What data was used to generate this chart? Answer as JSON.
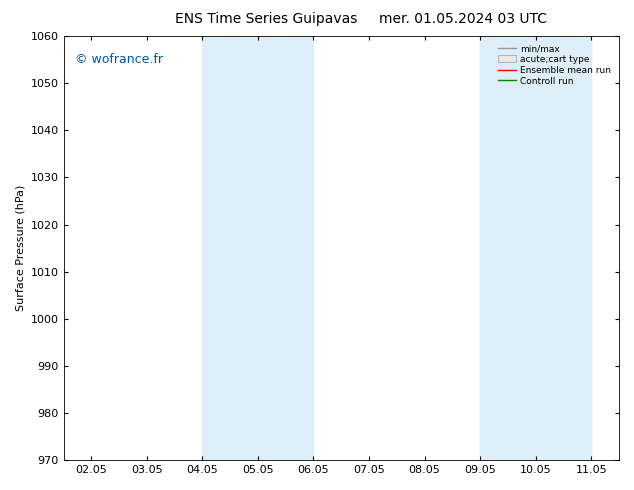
{
  "title_left": "ENS Time Series Guipavas",
  "title_right": "mer. 01.05.2024 03 UTC",
  "ylabel": "Surface Pressure (hPa)",
  "ylim": [
    970,
    1060
  ],
  "yticks": [
    970,
    980,
    990,
    1000,
    1010,
    1020,
    1030,
    1040,
    1050,
    1060
  ],
  "xtick_labels": [
    "02.05",
    "03.05",
    "04.05",
    "05.05",
    "06.05",
    "07.05",
    "08.05",
    "09.05",
    "10.05",
    "11.05"
  ],
  "watermark": "© wofrance.fr",
  "watermark_color": "#0055aa",
  "shaded_bands": [
    {
      "xmin": 2,
      "xmax": 4
    },
    {
      "xmin": 7,
      "xmax": 9
    }
  ],
  "shade_color": "#ddeef8",
  "legend_labels": [
    "min/max",
    "acute;cart type",
    "Ensemble mean run",
    "Controll run"
  ],
  "legend_colors": [
    "#999999",
    "#cccccc",
    "#ff0000",
    "#008800"
  ],
  "background_color": "#ffffff",
  "plot_bg_color": "#ffffff",
  "font_size": 8,
  "title_font_size": 10
}
